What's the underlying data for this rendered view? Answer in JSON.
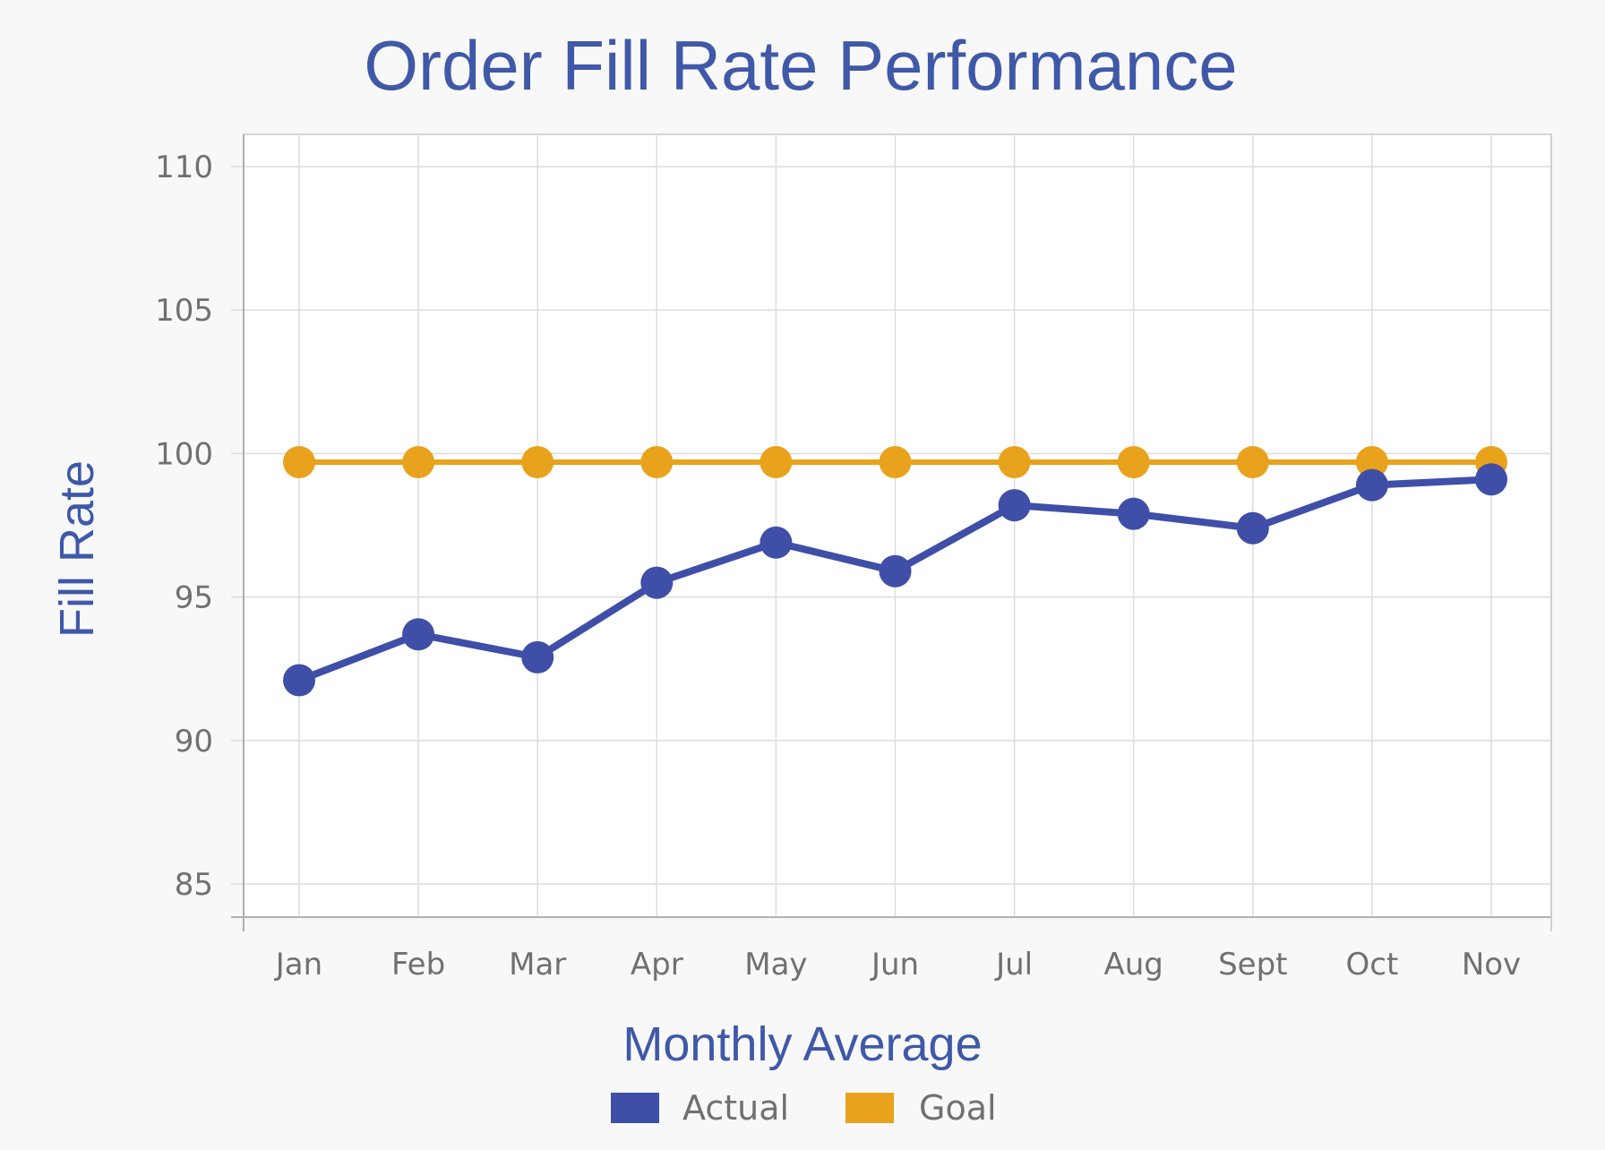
{
  "chart_data": {
    "type": "line",
    "title": "Order Fill Rate Performance",
    "xlabel": "Monthly Average",
    "ylabel": "Fill Rate",
    "categories": [
      "Jan",
      "Feb",
      "Mar",
      "Apr",
      "May",
      "Jun",
      "Jul",
      "Aug",
      "Sept",
      "Oct",
      "Nov"
    ],
    "yticks": [
      "85",
      "90",
      "95",
      "100",
      "105",
      "110"
    ],
    "ylim": [
      84,
      111
    ],
    "grid": true,
    "legend_position": "bottom",
    "series": [
      {
        "name": "Actual",
        "color": "#3f4fa8",
        "values": [
          92.1,
          93.7,
          92.9,
          95.5,
          96.9,
          95.9,
          98.2,
          97.9,
          97.4,
          98.9,
          99.1
        ]
      },
      {
        "name": "Goal",
        "color": "#e8a21c",
        "values": [
          99.7,
          99.7,
          99.7,
          99.7,
          99.7,
          99.7,
          99.7,
          99.7,
          99.7,
          99.7,
          99.7
        ]
      }
    ]
  }
}
